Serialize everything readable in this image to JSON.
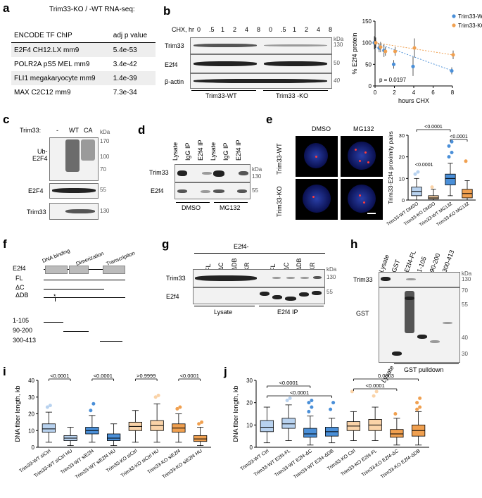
{
  "panels": {
    "a": "a",
    "b": "b",
    "c": "c",
    "d": "d",
    "e": "e",
    "f": "f",
    "g": "g",
    "h": "h",
    "i": "i",
    "j": "j"
  },
  "a": {
    "title": "Trim33-KO / -WT RNA-seq:",
    "col1": "ENCODE TF ChIP",
    "col2": "adj p value",
    "rows": [
      {
        "name": "E2F4 CH12.LX mm9",
        "p": "5.4e-53"
      },
      {
        "name": "POLR2A pS5 MEL mm9",
        "p": "3.4e-42"
      },
      {
        "name": "FLI1 megakaryocyte mm9",
        "p": "1.4e-39"
      },
      {
        "name": "MAX C2C12 mm9",
        "p": "7.3e-34"
      }
    ]
  },
  "b": {
    "chx_label": "CHX, hr",
    "timepoints": [
      "0",
      ".5",
      "1",
      "2",
      "4",
      "8",
      "0",
      ".5",
      "1",
      "2",
      "4",
      "8"
    ],
    "kda": "kDa",
    "rows": [
      "Trim33",
      "E2f4",
      "β-actin"
    ],
    "markers": [
      "130",
      "50",
      "40"
    ],
    "groups": [
      "Trim33-WT",
      "Trim33 -KO"
    ]
  },
  "c": {
    "lane_label": "Trim33:",
    "lanes": [
      "-",
      "WT",
      "CA"
    ],
    "kda": "kDa",
    "rows": [
      "Ub-\nE2F4",
      "E2F4",
      "Trim33"
    ],
    "ub_label_1": "Ub-",
    "ub_label_2": "E2F4",
    "markers": [
      "170",
      "100",
      "70",
      "55",
      "130"
    ]
  },
  "d": {
    "lanes": [
      "Lysate",
      "IgG IP",
      "E2f4 IP",
      "Lysate",
      "IgG IP",
      "E2f4 IP"
    ],
    "kda": "kDa",
    "rows": [
      "Trim33",
      "E2f4"
    ],
    "markers": [
      "130",
      "55"
    ],
    "groups": [
      "DMSO",
      "MG132"
    ]
  },
  "e": {
    "cols": [
      "DMSO",
      "MG132"
    ],
    "rows": [
      "Trim33-WT",
      "Trim33-KO"
    ],
    "p_vals": [
      "<0.0001",
      "<0.0001",
      "<0.0001"
    ],
    "categories": [
      "Trim33-WT DMSO",
      "Trim33-KO DMSO",
      "Trim33-WT MG132",
      "Trim33-KO MG132"
    ]
  },
  "f": {
    "protein": "E2f4",
    "domains": [
      "DNA binding",
      "Dimerization",
      "Transcription"
    ],
    "constructs": [
      "FL",
      "ΔC",
      "ΔDB",
      "1-105",
      "90-200",
      "300-413"
    ],
    "star": "*"
  },
  "g": {
    "header": "E2f4-",
    "lanes": [
      "-",
      "FL",
      "ΔC",
      "ΔDB",
      "KR",
      "-",
      "FL",
      "ΔC",
      "ΔDB",
      "KR"
    ],
    "kda": "kDa",
    "rows": [
      "Trim33",
      "E2f4"
    ],
    "markers": [
      "130",
      "55"
    ],
    "groups": [
      "Lysate",
      "E2f4 IP"
    ]
  },
  "h": {
    "lanes": [
      "Lysate",
      "GST",
      "E2f4-FL",
      "1-105",
      "90-200",
      "300-413"
    ],
    "kda": "kDa",
    "rows": [
      "Trim33",
      "GST"
    ],
    "markers": [
      "130",
      "70",
      "55",
      "40",
      "30"
    ],
    "groups": [
      "Lysate",
      "GST pulldown"
    ]
  },
  "colors": {
    "wt": "#4a8fd8",
    "wt_light": "#b8d2ef",
    "ko": "#f0a050",
    "ko_light": "#fad3a8"
  },
  "chart_data": [
    {
      "type": "line",
      "panel": "b",
      "title": "",
      "xlabel": "hours CHX",
      "ylabel": "% E2f4 protein",
      "xlim": [
        0,
        8
      ],
      "ylim": [
        0,
        150
      ],
      "xticks": [
        0,
        2,
        4,
        6,
        8
      ],
      "yticks": [
        0,
        50,
        100,
        150
      ],
      "annotation": "p = 0.0197",
      "legend": "top-right",
      "series": [
        {
          "name": "Trim33-WT",
          "color": "#4a8fd8",
          "x": [
            0,
            0.5,
            1,
            2,
            4,
            8
          ],
          "y": [
            100,
            88,
            82,
            50,
            45,
            35
          ],
          "err": [
            15,
            10,
            15,
            10,
            22,
            8
          ]
        },
        {
          "name": "Trim33-KO",
          "color": "#f0a050",
          "x": [
            0,
            0.5,
            1,
            2,
            4,
            8
          ],
          "y": [
            100,
            90,
            80,
            80,
            88,
            72
          ],
          "err": [
            12,
            12,
            10,
            10,
            22,
            10
          ]
        }
      ]
    },
    {
      "type": "box",
      "panel": "e",
      "ylabel": "Trim33-E2f4 proximity pairs",
      "ylim": [
        0,
        30
      ],
      "yticks": [
        0,
        10,
        20,
        30
      ],
      "categories": [
        "Trim33-WT DMSO",
        "Trim33-KO DMSO",
        "Trim33-WT MG132",
        "Trim33-KO MG132"
      ],
      "boxes": [
        {
          "min": 0,
          "q1": 2,
          "med": 4,
          "q3": 6,
          "max": 10,
          "out": [
            12,
            13
          ]
        },
        {
          "min": 0,
          "q1": 0.5,
          "med": 1,
          "q3": 2,
          "max": 5,
          "out": [
            6
          ]
        },
        {
          "min": 2,
          "q1": 7,
          "med": 10,
          "q3": 12,
          "max": 17,
          "out": [
            20,
            22,
            25,
            27
          ]
        },
        {
          "min": 0,
          "q1": 1,
          "med": 3,
          "q3": 5,
          "max": 9,
          "out": [
            18
          ]
        }
      ],
      "colors": [
        "#b8d2ef",
        "#fad3a8",
        "#4a8fd8",
        "#f0a050"
      ]
    },
    {
      "type": "box",
      "panel": "i",
      "ylabel": "DNA fiber length, kb",
      "ylim": [
        0,
        40
      ],
      "yticks": [
        0,
        10,
        20,
        30,
        40
      ],
      "categories": [
        "Trim33-WT siCtrl",
        "Trim33-WT siCtrl HU",
        "Trim33-WT siE2f4",
        "Trim33-WT siE2f4 HU",
        "Trim33-KO siCtrl",
        "Trim33-KO siCtrl HU",
        "Trim33-KO siE2f4",
        "Trim33-KO siE2f4 HU"
      ],
      "boxes": [
        {
          "min": 3,
          "q1": 9,
          "med": 11,
          "q3": 14,
          "max": 21,
          "out": [
            24,
            25
          ]
        },
        {
          "min": 1,
          "q1": 4,
          "med": 5.5,
          "q3": 7,
          "max": 12,
          "out": []
        },
        {
          "min": 3,
          "q1": 8,
          "med": 10,
          "q3": 12,
          "max": 19,
          "out": [
            22,
            26
          ]
        },
        {
          "min": 1,
          "q1": 4,
          "med": 5.5,
          "q3": 8,
          "max": 14,
          "out": []
        },
        {
          "min": 3,
          "q1": 10,
          "med": 12.5,
          "q3": 15,
          "max": 22,
          "out": []
        },
        {
          "min": 3,
          "q1": 10,
          "med": 13,
          "q3": 16,
          "max": 26,
          "out": [
            30,
            31
          ]
        },
        {
          "min": 3,
          "q1": 9,
          "med": 11.5,
          "q3": 14,
          "max": 20,
          "out": [
            23,
            24
          ]
        },
        {
          "min": 1,
          "q1": 3.5,
          "med": 5,
          "q3": 7,
          "max": 12,
          "out": [
            14,
            15
          ]
        }
      ],
      "comparisons": [
        {
          "from": 0,
          "to": 1,
          "label": "<0.0001"
        },
        {
          "from": 2,
          "to": 3,
          "label": "<0.0001"
        },
        {
          "from": 4,
          "to": 5,
          "label": ">0.9999"
        },
        {
          "from": 6,
          "to": 7,
          "label": "<0.0001"
        }
      ],
      "colors": [
        "#b8d2ef",
        "#b8d2ef",
        "#4a8fd8",
        "#4a8fd8",
        "#fad3a8",
        "#fad3a8",
        "#f0a050",
        "#f0a050"
      ]
    },
    {
      "type": "box",
      "panel": "j",
      "ylabel": "DNA fiber length, kb",
      "ylim": [
        0,
        30
      ],
      "yticks": [
        0,
        10,
        20,
        30
      ],
      "categories": [
        "Trim33-WT Ctrl",
        "Trim33-WT E2f4-FL",
        "Trim33-WT E2f4-ΔC",
        "Trim33-WT E2f4-ΔDB",
        "Trim33-KO Ctrl",
        "Trim33-KO E2f4-FL",
        "Trim33-KO E2f4-ΔC",
        "Trim33-KO E2f4-ΔDB"
      ],
      "boxes": [
        {
          "min": 2,
          "q1": 7,
          "med": 9,
          "q3": 12,
          "max": 18,
          "out": []
        },
        {
          "min": 3,
          "q1": 8.5,
          "med": 10.5,
          "q3": 13,
          "max": 19,
          "out": [
            21,
            22
          ]
        },
        {
          "min": 1,
          "q1": 4.5,
          "med": 6,
          "q3": 8.5,
          "max": 14,
          "out": [
            16,
            18,
            20,
            21
          ]
        },
        {
          "min": 2,
          "q1": 5,
          "med": 7,
          "q3": 9,
          "max": 13,
          "out": [
            17,
            20
          ]
        },
        {
          "min": 3,
          "q1": 7.5,
          "med": 9.5,
          "q3": 11.5,
          "max": 16,
          "out": [
            25
          ]
        },
        {
          "min": 3,
          "q1": 7.5,
          "med": 10,
          "q3": 12.5,
          "max": 18,
          "out": [
            23,
            25
          ]
        },
        {
          "min": 1,
          "q1": 4.5,
          "med": 6,
          "q3": 8,
          "max": 13,
          "out": [
            15
          ]
        },
        {
          "min": 1,
          "q1": 5,
          "med": 7.5,
          "q3": 10,
          "max": 16,
          "out": [
            17,
            18,
            20,
            22
          ]
        }
      ],
      "comparisons": [
        {
          "from": 0,
          "to": 2,
          "label": "<0.0001"
        },
        {
          "from": 0,
          "to": 3,
          "label": "<0.0001"
        },
        {
          "from": 4,
          "to": 6,
          "label": "<0.0001"
        },
        {
          "from": 4,
          "to": 7,
          "label": "0.0003"
        }
      ],
      "colors": [
        "#b8d2ef",
        "#b8d2ef",
        "#4a8fd8",
        "#4a8fd8",
        "#fad3a8",
        "#fad3a8",
        "#f0a050",
        "#f0a050"
      ]
    }
  ]
}
